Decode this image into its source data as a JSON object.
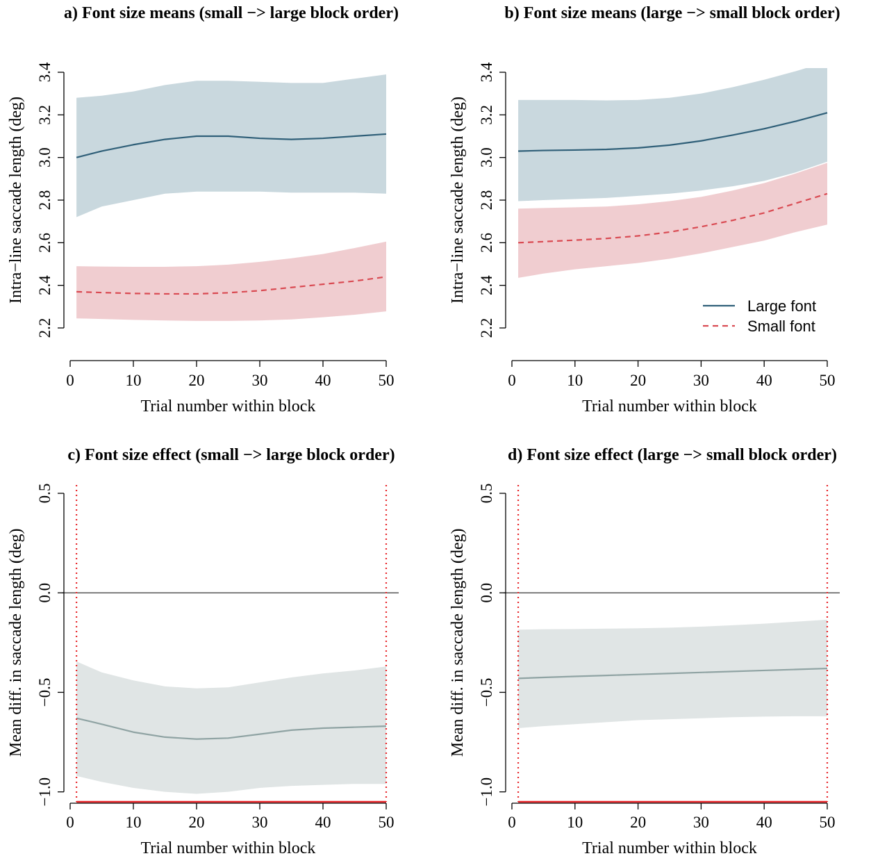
{
  "colors": {
    "large": "#2f5f78",
    "large_band": "#c9d8de",
    "small": "#d94a52",
    "small_band": "#f0cdd0",
    "diff": "#8fa3a3",
    "diff_band": "#e0e5e5",
    "ref_red": "#e8262a",
    "zero_line": "#333333"
  },
  "chart_data": [
    {
      "id": "a",
      "type": "line",
      "title": "a) Font size means (small −> large block order)",
      "xlabel": "Trial number within block",
      "ylabel": "Intra−line saccade length (deg)",
      "xlim": [
        0,
        50
      ],
      "ylim": [
        2.2,
        3.4
      ],
      "xticks": [
        0,
        10,
        20,
        30,
        40,
        50
      ],
      "yticks": [
        2.2,
        2.4,
        2.6,
        2.8,
        3.0,
        3.2,
        3.4
      ],
      "ytick_labels": [
        "2.2",
        "2.4",
        "2.6",
        "2.8",
        "3.0",
        "3.2",
        "3.4"
      ],
      "x": [
        1,
        5,
        10,
        15,
        20,
        25,
        30,
        35,
        40,
        45,
        50
      ],
      "series": [
        {
          "name": "Large font",
          "style": "solid",
          "values": [
            3.0,
            3.03,
            3.06,
            3.085,
            3.1,
            3.1,
            3.09,
            3.085,
            3.09,
            3.1,
            3.11
          ],
          "lower": [
            2.72,
            2.77,
            2.8,
            2.83,
            2.84,
            2.84,
            2.84,
            2.835,
            2.835,
            2.835,
            2.83
          ],
          "upper": [
            3.28,
            3.29,
            3.31,
            3.34,
            3.36,
            3.36,
            3.355,
            3.35,
            3.35,
            3.37,
            3.39
          ]
        },
        {
          "name": "Small font",
          "style": "dashed",
          "values": [
            2.37,
            2.366,
            2.362,
            2.36,
            2.36,
            2.365,
            2.375,
            2.39,
            2.405,
            2.42,
            2.44
          ],
          "lower": [
            2.245,
            2.242,
            2.238,
            2.235,
            2.233,
            2.233,
            2.235,
            2.24,
            2.25,
            2.262,
            2.278
          ],
          "upper": [
            2.49,
            2.488,
            2.487,
            2.487,
            2.49,
            2.497,
            2.51,
            2.527,
            2.547,
            2.575,
            2.605
          ]
        }
      ]
    },
    {
      "id": "b",
      "type": "line",
      "title": "b) Font size means (large −> small block order)",
      "xlabel": "Trial number within block",
      "ylabel": "Intra−line saccade length (deg)",
      "xlim": [
        0,
        50
      ],
      "ylim": [
        2.2,
        3.4
      ],
      "xticks": [
        0,
        10,
        20,
        30,
        40,
        50
      ],
      "yticks": [
        2.2,
        2.4,
        2.6,
        2.8,
        3.0,
        3.2,
        3.4
      ],
      "ytick_labels": [
        "2.2",
        "2.4",
        "2.6",
        "2.8",
        "3.0",
        "3.2",
        "3.4"
      ],
      "x": [
        1,
        5,
        10,
        15,
        20,
        25,
        30,
        35,
        40,
        45,
        50
      ],
      "series": [
        {
          "name": "Large font",
          "style": "solid",
          "values": [
            3.03,
            3.033,
            3.035,
            3.038,
            3.045,
            3.058,
            3.078,
            3.105,
            3.135,
            3.17,
            3.21
          ],
          "lower": [
            2.795,
            2.8,
            2.805,
            2.81,
            2.82,
            2.83,
            2.845,
            2.865,
            2.89,
            2.93,
            2.98
          ],
          "upper": [
            3.27,
            3.27,
            3.27,
            3.268,
            3.27,
            3.28,
            3.3,
            3.33,
            3.365,
            3.405,
            3.45
          ]
        },
        {
          "name": "Small font",
          "style": "dashed",
          "values": [
            2.6,
            2.605,
            2.612,
            2.62,
            2.632,
            2.65,
            2.675,
            2.705,
            2.74,
            2.785,
            2.83
          ],
          "lower": [
            2.435,
            2.455,
            2.475,
            2.49,
            2.505,
            2.525,
            2.55,
            2.58,
            2.61,
            2.65,
            2.685
          ],
          "upper": [
            2.76,
            2.763,
            2.766,
            2.77,
            2.78,
            2.795,
            2.815,
            2.845,
            2.88,
            2.925,
            2.975
          ]
        }
      ],
      "legend": {
        "position": "bottom-right",
        "entries": [
          "Large font",
          "Small font"
        ]
      }
    },
    {
      "id": "c",
      "type": "line",
      "title": "c) Font size effect (small −> large block order)",
      "xlabel": "Trial number within block",
      "ylabel": "Mean diff. in saccade length (deg)",
      "xlim": [
        0,
        50
      ],
      "ylim": [
        -1.05,
        0.5
      ],
      "xticks": [
        0,
        10,
        20,
        30,
        40,
        50
      ],
      "yticks": [
        -1.0,
        -0.5,
        0.0,
        0.5
      ],
      "ytick_labels": [
        "−1.0",
        "−0.5",
        "0.0",
        "0.5"
      ],
      "hline": 0.0,
      "vlines": [
        1,
        50
      ],
      "x": [
        1,
        5,
        10,
        15,
        20,
        25,
        30,
        35,
        40,
        45,
        50
      ],
      "series": [
        {
          "name": "",
          "style": "solid",
          "values": [
            -0.63,
            -0.66,
            -0.7,
            -0.725,
            -0.735,
            -0.73,
            -0.71,
            -0.69,
            -0.68,
            -0.675,
            -0.67
          ],
          "lower": [
            -0.92,
            -0.95,
            -0.98,
            -1.0,
            -1.01,
            -1.0,
            -0.98,
            -0.97,
            -0.965,
            -0.96,
            -0.96
          ],
          "upper": [
            -0.345,
            -0.4,
            -0.44,
            -0.47,
            -0.48,
            -0.475,
            -0.45,
            -0.425,
            -0.405,
            -0.39,
            -0.37
          ]
        }
      ]
    },
    {
      "id": "d",
      "type": "line",
      "title": "d) Font size effect (large −> small block order)",
      "xlabel": "Trial number within block",
      "ylabel": "Mean diff. in saccade length (deg)",
      "xlim": [
        0,
        50
      ],
      "ylim": [
        -1.05,
        0.5
      ],
      "xticks": [
        0,
        10,
        20,
        30,
        40,
        50
      ],
      "yticks": [
        -1.0,
        -0.5,
        0.0,
        0.5
      ],
      "ytick_labels": [
        "−1.0",
        "−0.5",
        "0.0",
        "0.5"
      ],
      "hline": 0.0,
      "vlines": [
        1,
        50
      ],
      "x": [
        1,
        5,
        10,
        15,
        20,
        25,
        30,
        35,
        40,
        45,
        50
      ],
      "series": [
        {
          "name": "",
          "style": "solid",
          "values": [
            -0.43,
            -0.425,
            -0.42,
            -0.415,
            -0.41,
            -0.405,
            -0.4,
            -0.395,
            -0.39,
            -0.385,
            -0.38
          ],
          "lower": [
            -0.68,
            -0.67,
            -0.66,
            -0.65,
            -0.64,
            -0.635,
            -0.63,
            -0.625,
            -0.622,
            -0.62,
            -0.62
          ],
          "upper": [
            -0.185,
            -0.183,
            -0.182,
            -0.18,
            -0.178,
            -0.175,
            -0.17,
            -0.163,
            -0.155,
            -0.145,
            -0.135
          ]
        }
      ]
    }
  ]
}
